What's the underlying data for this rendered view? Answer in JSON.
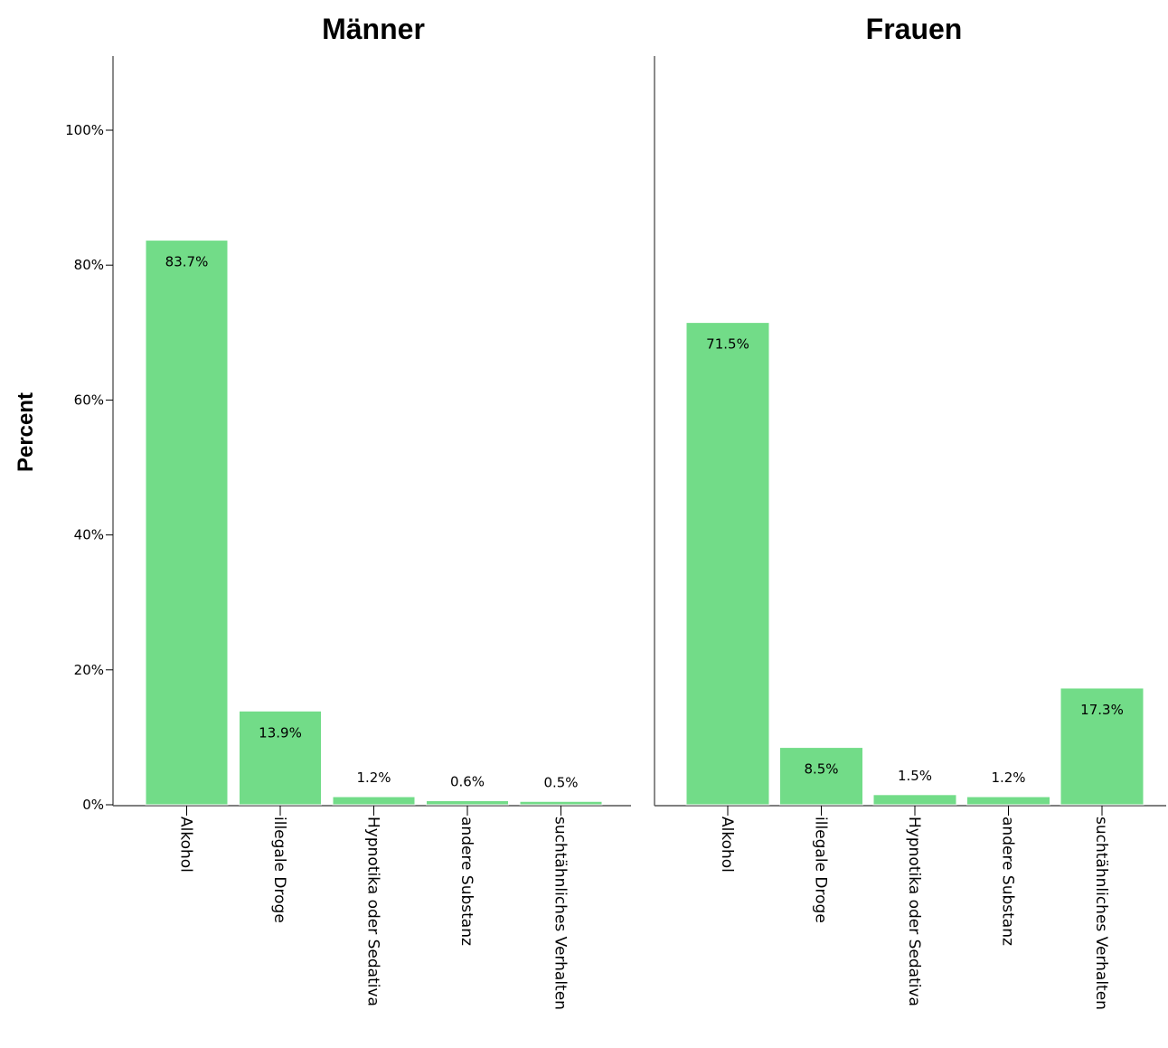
{
  "chart_data": [
    {
      "type": "bar",
      "title": "Männer",
      "ylabel": "Percent",
      "categories": [
        "Alkohol",
        "illegale Droge",
        "Hypnotika oder Sedativa",
        "andere Substanz",
        "suchtähnliches Verhalten"
      ],
      "values": [
        83.7,
        13.9,
        1.2,
        0.6,
        0.5
      ],
      "data_labels": [
        "83.7%",
        "13.9%",
        "1.2%",
        "0.6%",
        "0.5%"
      ],
      "yticks": [
        "0%",
        "20%",
        "40%",
        "60%",
        "80%",
        "100%"
      ],
      "ylim": [
        0,
        110
      ],
      "bar_color": "#72dc88"
    },
    {
      "type": "bar",
      "title": "Frauen",
      "categories": [
        "Alkohol",
        "illegale Droge",
        "Hypnotika oder Sedativa",
        "andere Substanz",
        "suchtähnliches Verhalten"
      ],
      "values": [
        71.5,
        8.5,
        1.5,
        1.2,
        17.3
      ],
      "data_labels": [
        "71.5%",
        "8.5%",
        "1.5%",
        "1.2%",
        "17.3%"
      ],
      "ylim": [
        0,
        110
      ],
      "bar_color": "#72dc88"
    }
  ]
}
